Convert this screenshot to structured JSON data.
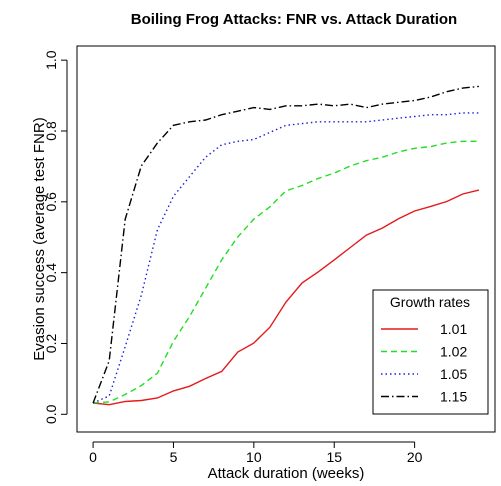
{
  "chart_data": {
    "type": "line",
    "title": "Boiling Frog Attacks: FNR vs. Attack Duration",
    "xlabel": "Attack duration (weeks)",
    "ylabel": "Evasion success (average test FNR)",
    "xlim": [
      -1,
      25
    ],
    "ylim": [
      -0.05,
      1.04
    ],
    "xticks": [
      0,
      5,
      10,
      15,
      20
    ],
    "yticks": [
      0.0,
      0.2,
      0.4,
      0.6,
      0.8,
      1.0
    ],
    "xtick_labels": [
      "0",
      "5",
      "10",
      "15",
      "20"
    ],
    "ytick_labels": [
      "0.0",
      "0.2",
      "0.4",
      "0.6",
      "0.8",
      "1.0"
    ],
    "grid": false,
    "legend": {
      "title": "Growth rates",
      "position": "bottom-right"
    },
    "x": [
      0,
      1,
      2,
      3,
      4,
      5,
      6,
      7,
      8,
      9,
      10,
      11,
      12,
      13,
      14,
      15,
      16,
      17,
      18,
      19,
      20,
      21,
      22,
      23,
      24
    ],
    "series": [
      {
        "name": "1.01",
        "color": "#e41a1c",
        "dash": "solid",
        "values": [
          0.032,
          0.027,
          0.036,
          0.039,
          0.046,
          0.066,
          0.079,
          0.101,
          0.121,
          0.176,
          0.201,
          0.246,
          0.317,
          0.371,
          0.402,
          0.436,
          0.471,
          0.506,
          0.526,
          0.552,
          0.574,
          0.587,
          0.601,
          0.622,
          0.633
        ]
      },
      {
        "name": "1.02",
        "color": "#22dd22",
        "dash": "dashed",
        "values": [
          0.032,
          0.035,
          0.056,
          0.081,
          0.116,
          0.206,
          0.276,
          0.356,
          0.436,
          0.501,
          0.551,
          0.586,
          0.631,
          0.646,
          0.666,
          0.681,
          0.701,
          0.716,
          0.726,
          0.741,
          0.751,
          0.756,
          0.766,
          0.771,
          0.771
        ]
      },
      {
        "name": "1.05",
        "color": "#1f1fdd",
        "dash": "dotted",
        "values": [
          0.032,
          0.052,
          0.191,
          0.336,
          0.521,
          0.616,
          0.671,
          0.726,
          0.761,
          0.771,
          0.776,
          0.796,
          0.816,
          0.821,
          0.826,
          0.826,
          0.826,
          0.826,
          0.831,
          0.836,
          0.841,
          0.846,
          0.846,
          0.851,
          0.851
        ]
      },
      {
        "name": "1.15",
        "color": "#000000",
        "dash": "dashdot",
        "values": [
          0.032,
          0.151,
          0.551,
          0.701,
          0.766,
          0.816,
          0.826,
          0.831,
          0.846,
          0.856,
          0.866,
          0.861,
          0.871,
          0.871,
          0.876,
          0.871,
          0.876,
          0.866,
          0.876,
          0.881,
          0.886,
          0.896,
          0.911,
          0.921,
          0.926
        ]
      }
    ]
  }
}
